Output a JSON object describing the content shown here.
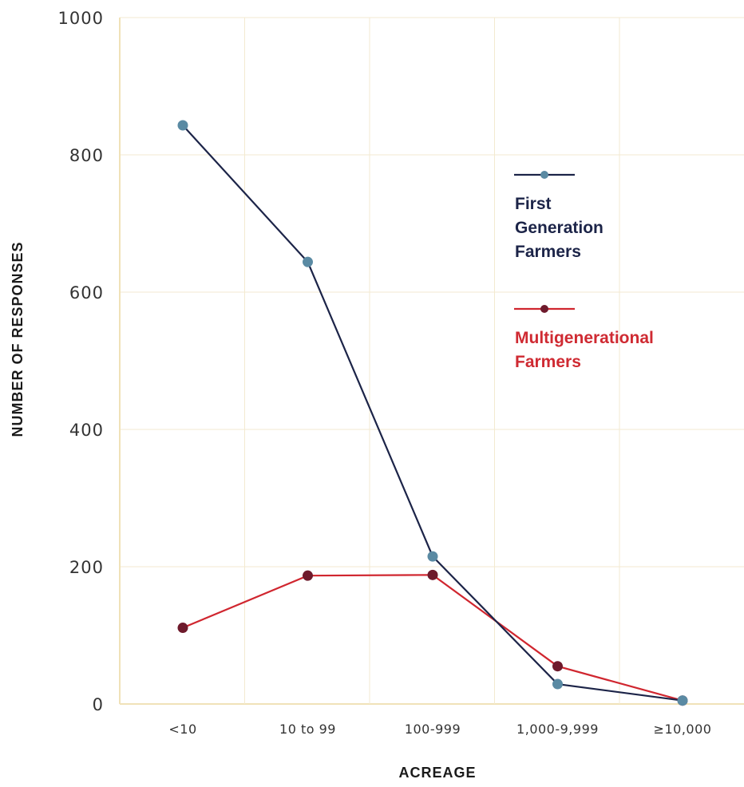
{
  "chart_data": {
    "type": "line",
    "categories": [
      "<10",
      "10 to 99",
      "100-999",
      "1,000-9,999",
      "≥10,000"
    ],
    "xlabel": "ACREAGE",
    "ylabel": "NUMBER OF RESPONSES",
    "ylim": [
      0,
      1000
    ],
    "yticks": [
      "0",
      "200",
      "400",
      "600",
      "800",
      "1000"
    ],
    "grid": true,
    "legend_position": "right",
    "series": [
      {
        "name": "First Generation Farmers",
        "legend_lines": [
          "First",
          "Generation",
          "Farmers"
        ],
        "values": [
          843,
          644,
          215,
          29,
          5
        ],
        "line_color": "#1c2448",
        "marker_color": "#5a8aa3",
        "text_color": "#1c2448"
      },
      {
        "name": "Multigenerational Farmers",
        "legend_lines": [
          "Multigenerational",
          "Farmers"
        ],
        "values": [
          111,
          187,
          188,
          55,
          5
        ],
        "line_color": "#d0262f",
        "marker_color": "#6e1a2c",
        "text_color": "#cf2a32"
      }
    ]
  },
  "colors": {
    "grid": "#f3ead0",
    "axis": "#f0e2b8"
  }
}
